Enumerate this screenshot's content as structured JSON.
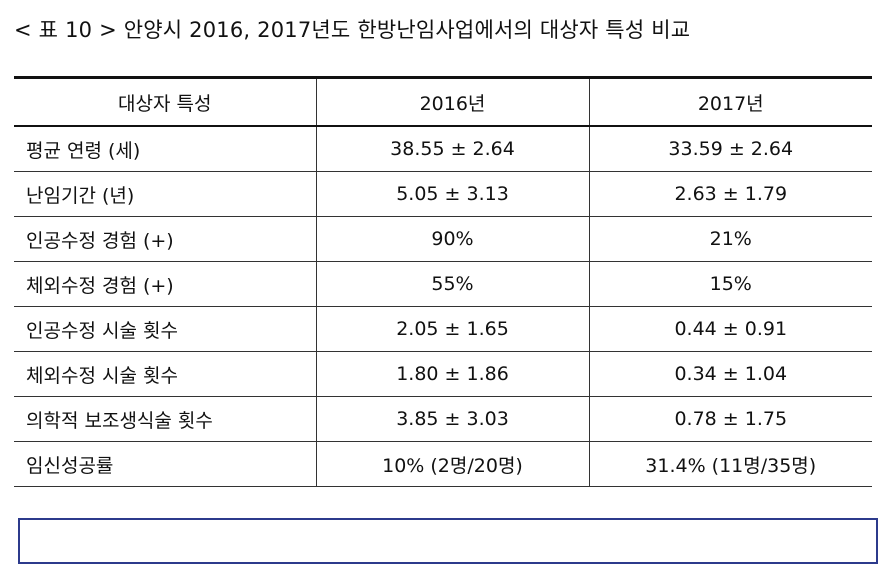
{
  "caption": "< 표 10 > 안양시 2016, 2017년도 한방난임사업에서의 대상자 특성 비교",
  "table": {
    "headers": [
      "대상자 특성",
      "2016년",
      "2017년"
    ],
    "rows": [
      {
        "label": "평균 연령 (세)",
        "v2016": "38.55 ± 2.64",
        "v2017": "33.59 ± 2.64"
      },
      {
        "label": "난임기간 (년)",
        "v2016": "5.05 ± 3.13",
        "v2017": "2.63 ± 1.79"
      },
      {
        "label": "인공수정 경험 (+)",
        "v2016": "90%",
        "v2017": "21%"
      },
      {
        "label": "체외수정 경험 (+)",
        "v2016": "55%",
        "v2017": "15%"
      },
      {
        "label": "인공수정 시술 횟수",
        "v2016": "2.05 ± 1.65",
        "v2017": "0.44  ± 0.91"
      },
      {
        "label": "체외수정 시술 횟수",
        "v2016": "1.80 ± 1.86",
        "v2017": "0.34 ± 1.04"
      },
      {
        "label": "의학적 보조생식술 횟수",
        "v2016": "3.85 ± 3.03",
        "v2017": "0.78 ± 1.75"
      },
      {
        "label": "임신성공률",
        "v2016": "10% (2명/20명)",
        "v2017": "31.4% (11명/35명)"
      }
    ]
  },
  "colors": {
    "highlight_border": "#2c3a8c",
    "rule": "#111111"
  }
}
